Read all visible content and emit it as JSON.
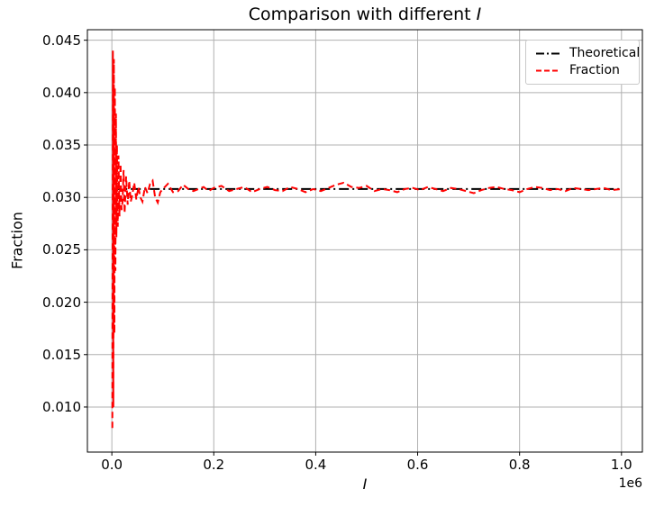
{
  "chart_data": {
    "type": "line",
    "title_text": "Comparison with different ",
    "title_var": "I",
    "xlabel": "I",
    "ylabel": "Fraction",
    "x_offset_label": "1e6",
    "grid": true,
    "legend_position": "upper right",
    "colors": {
      "background": "#ffffff",
      "grid": "#b0b0b0",
      "spine": "#000000",
      "legend_border": "#c9c9c9",
      "theoretical": "#000000",
      "fraction": "#ff0000"
    },
    "xlim": [
      -48000,
      1041000
    ],
    "ylim": [
      0.0057,
      0.046
    ],
    "xticks": [
      {
        "value": 0,
        "label": "0.0"
      },
      {
        "value": 200000,
        "label": "0.2"
      },
      {
        "value": 400000,
        "label": "0.4"
      },
      {
        "value": 600000,
        "label": "0.6"
      },
      {
        "value": 800000,
        "label": "0.8"
      },
      {
        "value": 1000000,
        "label": "1.0"
      }
    ],
    "yticks": [
      {
        "value": 0.01,
        "label": "0.010"
      },
      {
        "value": 0.015,
        "label": "0.015"
      },
      {
        "value": 0.02,
        "label": "0.020"
      },
      {
        "value": 0.025,
        "label": "0.025"
      },
      {
        "value": 0.03,
        "label": "0.030"
      },
      {
        "value": 0.035,
        "label": "0.035"
      },
      {
        "value": 0.04,
        "label": "0.040"
      },
      {
        "value": 0.045,
        "label": "0.045"
      }
    ],
    "theoretical_value": 0.0308,
    "series": [
      {
        "name": "Theoretical",
        "color": "#000000",
        "style": "dashdot",
        "x": [
          0,
          1000000
        ],
        "y": [
          0.0308,
          0.0308
        ]
      },
      {
        "name": "Fraction",
        "color": "#ff0000",
        "style": "dashed",
        "x": [
          1000,
          2000,
          3000,
          4000,
          5000,
          6000,
          7000,
          8000,
          9000,
          10000,
          11500,
          13000,
          15000,
          17000,
          19000,
          21000,
          23000,
          25000,
          28000,
          31000,
          34000,
          37000,
          40000,
          44000,
          48000,
          52000,
          56000,
          60000,
          65000,
          70000,
          75000,
          80000,
          85000,
          90000,
          95000,
          100000,
          110000,
          120000,
          130000,
          140000,
          150000,
          160000,
          170000,
          180000,
          190000,
          200000,
          215000,
          230000,
          245000,
          260000,
          275000,
          290000,
          305000,
          320000,
          335000,
          350000,
          365000,
          380000,
          395000,
          410000,
          425000,
          440000,
          455000,
          470000,
          485000,
          500000,
          515000,
          530000,
          545000,
          560000,
          575000,
          590000,
          605000,
          620000,
          635000,
          650000,
          665000,
          680000,
          695000,
          710000,
          725000,
          740000,
          755000,
          770000,
          785000,
          800000,
          815000,
          830000,
          845000,
          860000,
          875000,
          890000,
          905000,
          920000,
          935000,
          950000,
          965000,
          980000,
          1000000
        ],
        "y": [
          0.008,
          0.044,
          0.01,
          0.0432,
          0.017,
          0.0405,
          0.023,
          0.038,
          0.0262,
          0.035,
          0.0272,
          0.034,
          0.0282,
          0.0332,
          0.0288,
          0.0296,
          0.0326,
          0.0285,
          0.032,
          0.0293,
          0.0316,
          0.0296,
          0.0302,
          0.0314,
          0.0298,
          0.031,
          0.03,
          0.0296,
          0.031,
          0.0304,
          0.0313,
          0.0316,
          0.03,
          0.0295,
          0.0305,
          0.0308,
          0.0313,
          0.0305,
          0.0306,
          0.0312,
          0.0308,
          0.0306,
          0.0308,
          0.031,
          0.0306,
          0.0309,
          0.0311,
          0.0306,
          0.0308,
          0.031,
          0.0305,
          0.0308,
          0.031,
          0.0307,
          0.0306,
          0.031,
          0.0308,
          0.0305,
          0.0308,
          0.0306,
          0.0309,
          0.0312,
          0.0314,
          0.031,
          0.0309,
          0.0311,
          0.0306,
          0.0308,
          0.0307,
          0.0305,
          0.0308,
          0.0309,
          0.0307,
          0.031,
          0.0308,
          0.0306,
          0.0309,
          0.0308,
          0.0306,
          0.0304,
          0.0307,
          0.0309,
          0.031,
          0.0308,
          0.0307,
          0.0305,
          0.0308,
          0.031,
          0.0309,
          0.0307,
          0.0308,
          0.0306,
          0.0309,
          0.0308,
          0.0307,
          0.0308,
          0.0309,
          0.0307,
          0.0308
        ]
      }
    ]
  }
}
